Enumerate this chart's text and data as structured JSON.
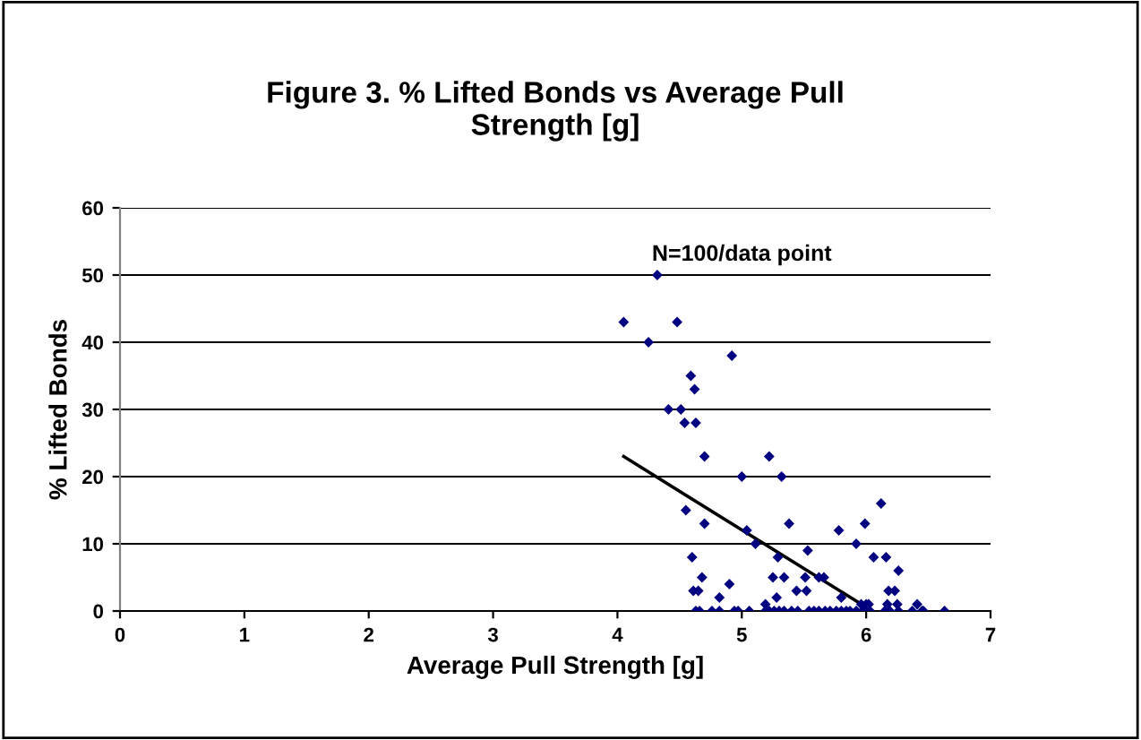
{
  "chart_data": {
    "type": "scatter",
    "title": "Figure 3. % Lifted Bonds vs Average Pull\nStrength [g]",
    "xlabel": "Average Pull Strength [g]",
    "ylabel": "% Lifted Bonds",
    "xlim": [
      0,
      7
    ],
    "xticks": [
      0,
      1,
      2,
      3,
      4,
      5,
      6,
      7
    ],
    "ylim": [
      0,
      60
    ],
    "yticks": [
      0,
      10,
      20,
      30,
      40,
      50,
      60
    ],
    "grid": "y",
    "legend": false,
    "annotations": [
      "N=100/data point"
    ],
    "series": [
      {
        "color": "#000080",
        "marker": "diamond",
        "x": [
          4.05,
          4.32,
          4.25,
          4.48,
          4.92,
          4.59,
          4.62,
          4.41,
          4.51,
          4.54,
          4.63,
          4.7,
          5.22,
          5.0,
          5.32,
          4.55,
          4.7,
          5.38,
          5.04,
          5.11,
          5.78,
          5.99,
          6.12,
          4.6,
          5.29,
          5.53,
          5.92,
          6.06,
          6.16,
          6.26,
          4.68,
          5.25,
          5.34,
          5.51,
          5.62,
          5.66,
          4.61,
          4.65,
          4.82,
          4.9,
          5.28,
          5.44,
          5.52,
          5.8,
          6.18,
          6.23,
          5.19,
          5.96,
          6.0,
          6.02,
          6.17,
          6.25,
          6.41,
          4.63,
          4.66,
          4.76,
          4.82,
          4.94,
          4.97,
          5.06,
          5.19,
          5.22,
          5.26,
          5.3,
          5.34,
          5.4,
          5.45,
          5.54,
          5.58,
          5.62,
          5.67,
          5.71,
          5.76,
          5.8,
          5.84,
          5.87,
          5.92,
          5.97,
          6.03,
          6.15,
          6.19,
          6.26,
          6.37,
          6.45,
          6.46,
          6.63
        ],
        "values": [
          43,
          50,
          40,
          43,
          38,
          35,
          33,
          30,
          30,
          28,
          28,
          23,
          23,
          20,
          20,
          15,
          13,
          13,
          12,
          10,
          12,
          13,
          16,
          8,
          8,
          9,
          10,
          8,
          8,
          6,
          5,
          5,
          5,
          5,
          5,
          5,
          3,
          3,
          2,
          4,
          2,
          3,
          3,
          2,
          3,
          3,
          1,
          1,
          1,
          1,
          1,
          1,
          1,
          0,
          0,
          0,
          0,
          0,
          0,
          0,
          0,
          0,
          0,
          0,
          0,
          0,
          0,
          0,
          0,
          0,
          0,
          0,
          0,
          0,
          0,
          0,
          0,
          0,
          0,
          0,
          0,
          0,
          0,
          0,
          0,
          0
        ]
      },
      {
        "type": "line",
        "color": "#000000",
        "x": [
          4.05,
          6.05
        ],
        "values": [
          23,
          0
        ],
        "line_style": "solid"
      }
    ]
  }
}
